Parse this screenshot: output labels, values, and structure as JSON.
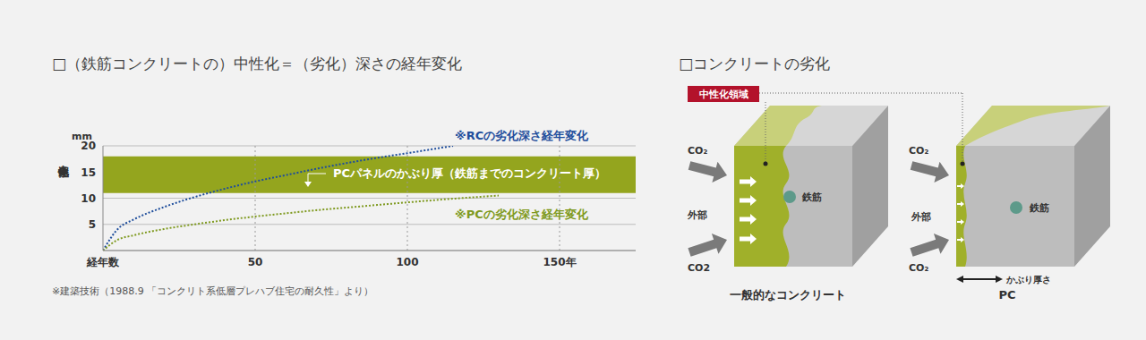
{
  "chart_data": {
    "type": "line",
    "title": "□（鉄筋コンクリートの）中性化＝（劣化）深さの経年変化",
    "y_label": "中性化深さ",
    "y_unit": "mm",
    "xlim": [
      0,
      175
    ],
    "xticks": [
      {
        "value": 0,
        "label": "経年数"
      },
      50,
      100,
      {
        "value": 150,
        "label": "150年"
      }
    ],
    "ylim": [
      0,
      20
    ],
    "yticks": [
      5,
      10,
      15,
      20
    ],
    "grid": true,
    "series": [
      {
        "name": "※RCの劣化深さ経年変化",
        "color": "#1f4e9c",
        "line_style": "dotted",
        "x": [
          0,
          5,
          10,
          20,
          30,
          40,
          50,
          60,
          70,
          80,
          90,
          100,
          115
        ],
        "values": [
          0,
          4.2,
          5.9,
          8.3,
          10.2,
          11.8,
          13.2,
          14.4,
          15.6,
          16.7,
          17.7,
          18.6,
          20
        ]
      },
      {
        "name": "※PCの劣化深さ経年変化",
        "color": "#7f9a20",
        "line_style": "dotted",
        "x": [
          0,
          5,
          10,
          20,
          30,
          40,
          50,
          60,
          70,
          80,
          90,
          100,
          115,
          130
        ],
        "values": [
          0,
          2.1,
          2.9,
          4.1,
          5.0,
          5.8,
          6.5,
          7.1,
          7.7,
          8.2,
          8.7,
          9.2,
          9.9,
          10.5
        ]
      }
    ],
    "band": {
      "label": "PCパネルのかぶり厚（鉄筋までのコンクリート厚）",
      "y_range": [
        11,
        18
      ],
      "color": "#94a51e"
    },
    "footnote": "※建築技術（1988.9 「コンクリト系低層プレハブ住宅の耐久性」より）"
  },
  "diagram": {
    "title": "□コンクリートの劣化",
    "region_label": "中性化領域",
    "panels": [
      {
        "caption": "一般的なコンクリート",
        "co2_top": "CO₂",
        "outside": "外部",
        "co2_bottom": "CO2",
        "rebar": "鉄筋"
      },
      {
        "caption": "PC",
        "co2_top": "CO₂",
        "outside": "外部",
        "co2_bottom": "CO₂",
        "rebar": "鉄筋",
        "cover_label": "かぶり厚さ"
      }
    ]
  }
}
